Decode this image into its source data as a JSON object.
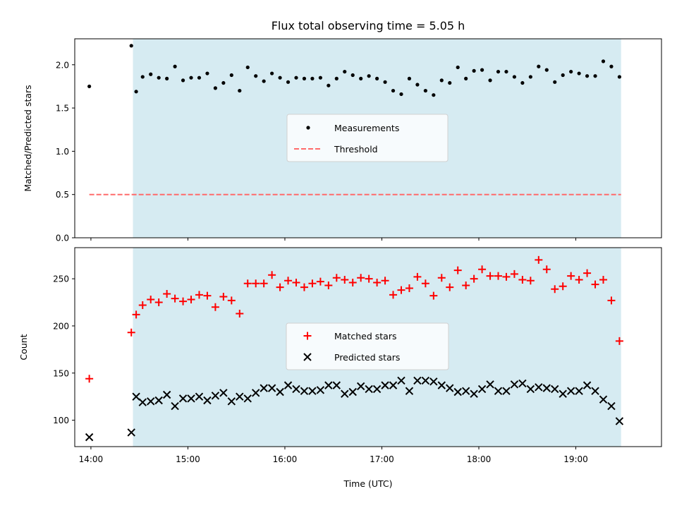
{
  "figure": {
    "title": "Flux total observing time = 5.05 h",
    "xlabel": "Time (UTC)",
    "x_tick_labels": [
      "14:00",
      "15:00",
      "16:00",
      "17:00",
      "18:00",
      "19:00"
    ],
    "colors": {
      "shaded": "#add8e6",
      "measurement": "#000000",
      "threshold": "#ff6b6b",
      "matched": "#ff0000",
      "predicted": "#000000"
    }
  },
  "chart_data": [
    {
      "type": "scatter",
      "ylabel": "Matched/Predicted stars",
      "xlim": [
        "13:50",
        "19:53"
      ],
      "ylim": [
        0,
        2.3
      ],
      "y_ticks": [
        0.0,
        0.5,
        1.0,
        1.5,
        2.0
      ],
      "y_tick_labels": [
        "0.0",
        "0.5",
        "1.0",
        "1.5",
        "2.0"
      ],
      "shaded_span": [
        "14:26",
        "19:28"
      ],
      "legend": {
        "position": "center",
        "entries": [
          "Measurements",
          "Threshold"
        ]
      },
      "threshold": {
        "name": "Threshold",
        "value": 0.5,
        "x_range": [
          "13:59",
          "19:28"
        ],
        "style": "dashed"
      },
      "series": [
        {
          "name": "Measurements",
          "x": [
            "13:59",
            "14:25",
            "14:28",
            "14:32",
            "14:37",
            "14:42",
            "14:47",
            "14:52",
            "14:57",
            "15:02",
            "15:07",
            "15:12",
            "15:17",
            "15:22",
            "15:27",
            "15:32",
            "15:37",
            "15:42",
            "15:47",
            "15:52",
            "15:57",
            "16:02",
            "16:07",
            "16:12",
            "16:17",
            "16:22",
            "16:27",
            "16:32",
            "16:37",
            "16:42",
            "16:47",
            "16:52",
            "16:57",
            "17:02",
            "17:07",
            "17:12",
            "17:17",
            "17:22",
            "17:27",
            "17:32",
            "17:37",
            "17:42",
            "17:47",
            "17:52",
            "17:57",
            "18:02",
            "18:07",
            "18:12",
            "18:17",
            "18:22",
            "18:27",
            "18:32",
            "18:37",
            "18:42",
            "18:47",
            "18:52",
            "18:57",
            "19:02",
            "19:07",
            "19:12",
            "19:17",
            "19:22",
            "19:27"
          ],
          "y": [
            1.75,
            2.22,
            1.69,
            1.86,
            1.89,
            1.85,
            1.84,
            1.98,
            1.82,
            1.85,
            1.85,
            1.9,
            1.73,
            1.79,
            1.88,
            1.7,
            1.97,
            1.87,
            1.81,
            1.9,
            1.85,
            1.8,
            1.85,
            1.84,
            1.84,
            1.85,
            1.76,
            1.84,
            1.92,
            1.88,
            1.84,
            1.87,
            1.84,
            1.8,
            1.7,
            1.66,
            1.84,
            1.77,
            1.7,
            1.65,
            1.82,
            1.79,
            1.97,
            1.84,
            1.93,
            1.94,
            1.82,
            1.92,
            1.92,
            1.86,
            1.79,
            1.86,
            1.98,
            1.94,
            1.8,
            1.88,
            1.92,
            1.9,
            1.87,
            1.87,
            2.04,
            1.98,
            1.86
          ]
        }
      ]
    },
    {
      "type": "scatter",
      "ylabel": "Count",
      "xlim": [
        "13:50",
        "19:53"
      ],
      "ylim": [
        72,
        283
      ],
      "y_ticks": [
        100,
        150,
        200,
        250
      ],
      "y_tick_labels": [
        "100",
        "150",
        "200",
        "250"
      ],
      "shaded_span": [
        "14:26",
        "19:28"
      ],
      "legend": {
        "position": "center",
        "entries": [
          "Matched stars",
          "Predicted stars"
        ]
      },
      "series": [
        {
          "name": "Matched stars",
          "marker": "plus",
          "x": [
            "13:59",
            "14:25",
            "14:28",
            "14:32",
            "14:37",
            "14:42",
            "14:47",
            "14:52",
            "14:57",
            "15:02",
            "15:07",
            "15:12",
            "15:17",
            "15:22",
            "15:27",
            "15:32",
            "15:37",
            "15:42",
            "15:47",
            "15:52",
            "15:57",
            "16:02",
            "16:07",
            "16:12",
            "16:17",
            "16:22",
            "16:27",
            "16:32",
            "16:37",
            "16:42",
            "16:47",
            "16:52",
            "16:57",
            "17:02",
            "17:07",
            "17:12",
            "17:17",
            "17:22",
            "17:27",
            "17:32",
            "17:37",
            "17:42",
            "17:47",
            "17:52",
            "17:57",
            "18:02",
            "18:07",
            "18:12",
            "18:17",
            "18:22",
            "18:27",
            "18:32",
            "18:37",
            "18:42",
            "18:47",
            "18:52",
            "18:57",
            "19:02",
            "19:07",
            "19:12",
            "19:17",
            "19:22",
            "19:27"
          ],
          "y": [
            144,
            193,
            212,
            222,
            228,
            225,
            234,
            229,
            226,
            228,
            233,
            232,
            220,
            231,
            227,
            213,
            245,
            245,
            245,
            254,
            241,
            248,
            246,
            241,
            245,
            247,
            243,
            251,
            249,
            246,
            251,
            250,
            246,
            248,
            233,
            238,
            240,
            252,
            245,
            232,
            251,
            241,
            259,
            243,
            250,
            260,
            253,
            253,
            252,
            255,
            249,
            248,
            270,
            260,
            239,
            242,
            253,
            249,
            256,
            244,
            249,
            227,
            184
          ]
        },
        {
          "name": "Predicted stars",
          "marker": "x",
          "x": [
            "13:59",
            "14:25",
            "14:28",
            "14:32",
            "14:37",
            "14:42",
            "14:47",
            "14:52",
            "14:57",
            "15:02",
            "15:07",
            "15:12",
            "15:17",
            "15:22",
            "15:27",
            "15:32",
            "15:37",
            "15:42",
            "15:47",
            "15:52",
            "15:57",
            "16:02",
            "16:07",
            "16:12",
            "16:17",
            "16:22",
            "16:27",
            "16:32",
            "16:37",
            "16:42",
            "16:47",
            "16:52",
            "16:57",
            "17:02",
            "17:07",
            "17:12",
            "17:17",
            "17:22",
            "17:27",
            "17:32",
            "17:37",
            "17:42",
            "17:47",
            "17:52",
            "17:57",
            "18:02",
            "18:07",
            "18:12",
            "18:17",
            "18:22",
            "18:27",
            "18:32",
            "18:37",
            "18:42",
            "18:47",
            "18:52",
            "18:57",
            "19:02",
            "19:07",
            "19:12",
            "19:17",
            "19:22",
            "19:27"
          ],
          "y": [
            82,
            87,
            125,
            119,
            120,
            121,
            127,
            115,
            123,
            123,
            125,
            121,
            126,
            129,
            120,
            125,
            123,
            129,
            134,
            134,
            130,
            137,
            133,
            131,
            131,
            132,
            137,
            137,
            128,
            130,
            136,
            133,
            133,
            137,
            137,
            142,
            131,
            142,
            142,
            141,
            137,
            134,
            130,
            131,
            128,
            133,
            138,
            131,
            131,
            138,
            139,
            133,
            135,
            134,
            133,
            128,
            131,
            131,
            137,
            131,
            122,
            115,
            99
          ]
        }
      ]
    }
  ]
}
